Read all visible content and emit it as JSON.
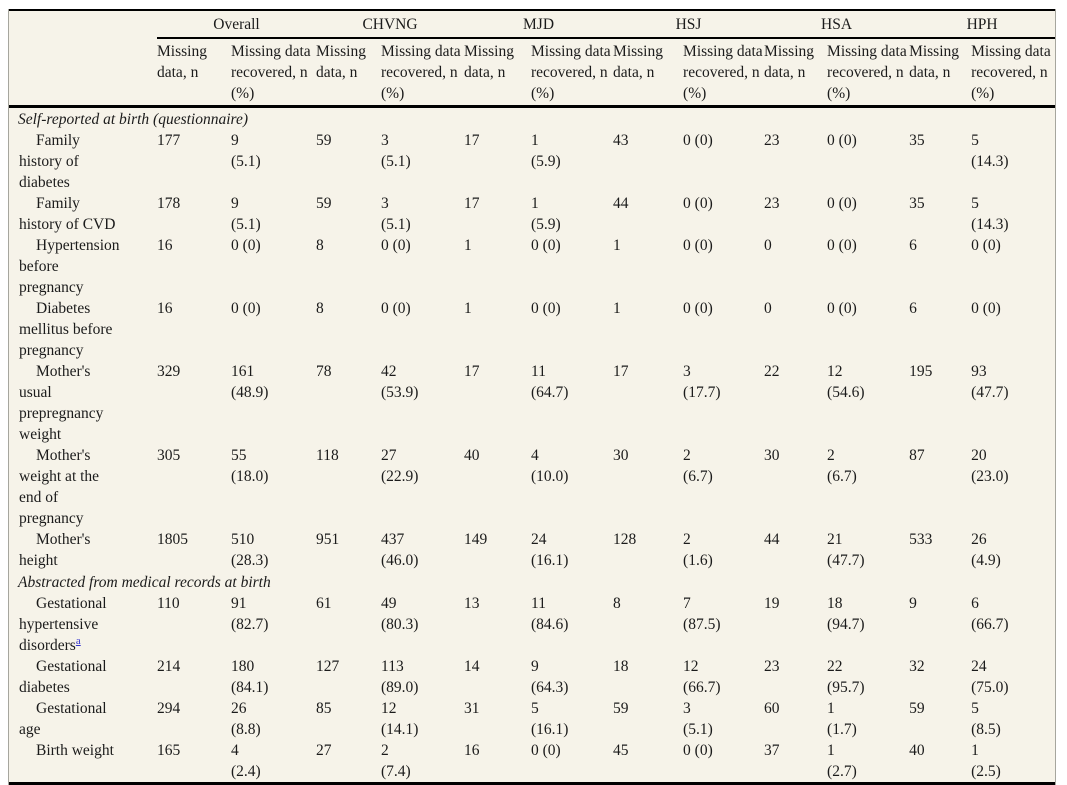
{
  "table": {
    "colors": {
      "table_background": "#f6f3e9",
      "rule_color": "#000000",
      "side_border_color": "#a6a69e",
      "text_color": "#1b1b1b",
      "footnote_link_color": "#3333cc"
    },
    "groups": [
      "Overall",
      "CHVNG",
      "MJD",
      "HSJ",
      "HSA",
      "HPH"
    ],
    "subheaders": [
      "Missing\ndata, n",
      "Missing data\nrecovered, n\n(%)"
    ],
    "rows": [
      {
        "type": "section",
        "label": "Self-reported at birth (questionnaire)"
      },
      {
        "type": "data",
        "label": "Family\nhistory of\ndiabetes",
        "values": [
          "177",
          "9\n(5.1)",
          "59",
          "3\n(5.1)",
          "17",
          "1\n(5.9)",
          "43",
          "0 (0)",
          "23",
          "0 (0)",
          "35",
          "5\n(14.3)"
        ]
      },
      {
        "type": "data",
        "label": "Family\nhistory of CVD",
        "values": [
          "178",
          "9\n(5.1)",
          "59",
          "3\n(5.1)",
          "17",
          "1\n(5.9)",
          "44",
          "0 (0)",
          "23",
          "0 (0)",
          "35",
          "5\n(14.3)"
        ]
      },
      {
        "type": "data",
        "label": "Hypertension\nbefore\npregnancy",
        "values": [
          "16",
          "0 (0)",
          "8",
          "0 (0)",
          "1",
          "0 (0)",
          "1",
          "0 (0)",
          "0",
          "0 (0)",
          "6",
          "0 (0)"
        ]
      },
      {
        "type": "data",
        "label": "Diabetes\nmellitus before\npregnancy",
        "values": [
          "16",
          "0 (0)",
          "8",
          "0 (0)",
          "1",
          "0 (0)",
          "1",
          "0 (0)",
          "0",
          "0 (0)",
          "6",
          "0 (0)"
        ]
      },
      {
        "type": "data",
        "label": "Mother's\nusual\nprepregnancy\nweight",
        "values": [
          "329",
          "161\n(48.9)",
          "78",
          "42\n(53.9)",
          "17",
          "11\n(64.7)",
          "17",
          "3\n(17.7)",
          "22",
          "12\n(54.6)",
          "195",
          "93\n(47.7)"
        ]
      },
      {
        "type": "data",
        "label": "Mother's\nweight at the\nend of\npregnancy",
        "values": [
          "305",
          "55\n(18.0)",
          "118",
          "27\n(22.9)",
          "40",
          "4\n(10.0)",
          "30",
          "2\n(6.7)",
          "30",
          "2\n(6.7)",
          "87",
          "20\n(23.0)"
        ]
      },
      {
        "type": "data",
        "label": "Mother's\nheight",
        "values": [
          "1805",
          "510\n(28.3)",
          "951",
          "437\n(46.0)",
          "149",
          "24\n(16.1)",
          "128",
          "2\n(1.6)",
          "44",
          "21\n(47.7)",
          "533",
          "26\n(4.9)"
        ]
      },
      {
        "type": "section",
        "label": "Abstracted from medical records at birth"
      },
      {
        "type": "data",
        "label": "Gestational\nhypertensive\ndisorders",
        "footnote": "a",
        "values": [
          "110",
          "91\n(82.7)",
          "61",
          "49\n(80.3)",
          "13",
          "11\n(84.6)",
          "8",
          "7\n(87.5)",
          "19",
          "18\n(94.7)",
          "9",
          "6\n(66.7)"
        ]
      },
      {
        "type": "data",
        "label": "Gestational\ndiabetes",
        "values": [
          "214",
          "180\n(84.1)",
          "127",
          "113\n(89.0)",
          "14",
          "9\n(64.3)",
          "18",
          "12\n(66.7)",
          "23",
          "22\n(95.7)",
          "32",
          "24\n(75.0)"
        ]
      },
      {
        "type": "data",
        "label": "Gestational\nage",
        "values": [
          "294",
          "26\n(8.8)",
          "85",
          "12\n(14.1)",
          "31",
          "5\n(16.1)",
          "59",
          "3\n(5.1)",
          "60",
          "1\n(1.7)",
          "59",
          "5\n(8.5)"
        ]
      },
      {
        "type": "data",
        "label": "Birth weight",
        "values": [
          "165",
          "4\n(2.4)",
          "27",
          "2\n(7.4)",
          "16",
          "0 (0)",
          "45",
          "0 (0)",
          "37",
          "1\n(2.7)",
          "40",
          "1\n(2.5)"
        ]
      }
    ]
  }
}
